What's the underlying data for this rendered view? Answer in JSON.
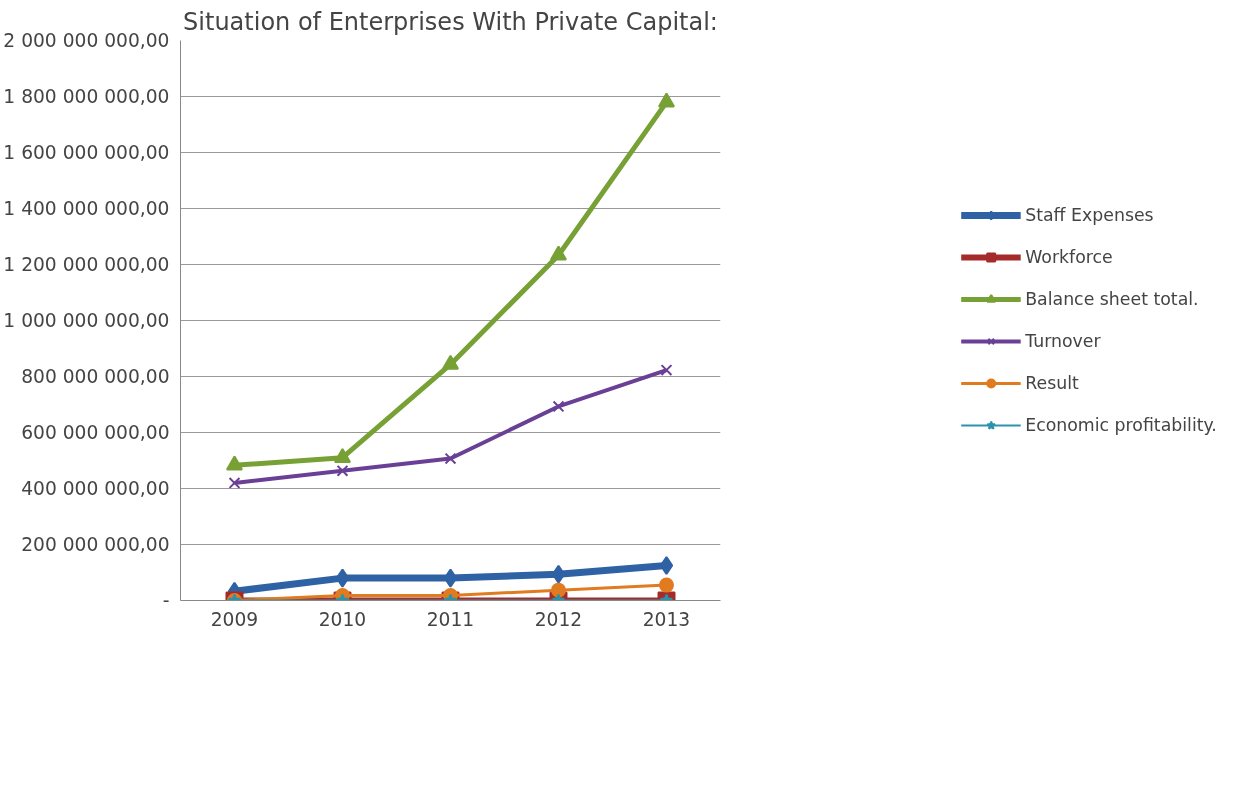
{
  "chart_data": {
    "type": "line",
    "title": "Situation of Enterprises With Private Capital:",
    "categories": [
      "2009",
      "2010",
      "2011",
      "2012",
      "2013"
    ],
    "series": [
      {
        "name": "Staff Expenses",
        "color": "#2e62a4",
        "marker": "diamond",
        "values": [
          33000000,
          80000000,
          80000000,
          94000000,
          125000000
        ]
      },
      {
        "name": "Workforce",
        "color": "#a52a2a",
        "marker": "square",
        "values": [
          0,
          0,
          0,
          0,
          0
        ]
      },
      {
        "name": "Balance sheet total.",
        "color": "#77a035",
        "marker": "triangle",
        "values": [
          483000000,
          510000000,
          843000000,
          1233000000,
          1780000000
        ]
      },
      {
        "name": "Turnover",
        "color": "#6a3f96",
        "marker": "cross",
        "values": [
          420000000,
          463000000,
          507000000,
          693000000,
          823000000
        ]
      },
      {
        "name": "Result",
        "color": "#e07b20",
        "marker": "circle",
        "values": [
          0,
          18000000,
          18000000,
          37000000,
          55000000
        ]
      },
      {
        "name": "Economic profitability.",
        "color": "#2a93ab",
        "marker": "star",
        "values": [
          0,
          0,
          0,
          0,
          0
        ]
      }
    ],
    "ylim": [
      0,
      2000000000
    ],
    "yticks": [
      {
        "value": 0,
        "label": "-"
      },
      {
        "value": 200000000,
        "label": "200 000 000,00"
      },
      {
        "value": 400000000,
        "label": "400 000 000,00"
      },
      {
        "value": 600000000,
        "label": "600 000 000,00"
      },
      {
        "value": 800000000,
        "label": "800 000 000,00"
      },
      {
        "value": 1000000000,
        "label": "1 000 000 000,00"
      },
      {
        "value": 1200000000,
        "label": "1 200 000 000,00"
      },
      {
        "value": 1400000000,
        "label": "1 400 000 000,00"
      },
      {
        "value": 1600000000,
        "label": "1 600 000 000,00"
      },
      {
        "value": 1800000000,
        "label": "1 800 000 000,00"
      },
      {
        "value": 2000000000,
        "label": "2 000 000 000,00"
      }
    ],
    "grid": "y",
    "legend": "right",
    "line_style": "solid"
  }
}
